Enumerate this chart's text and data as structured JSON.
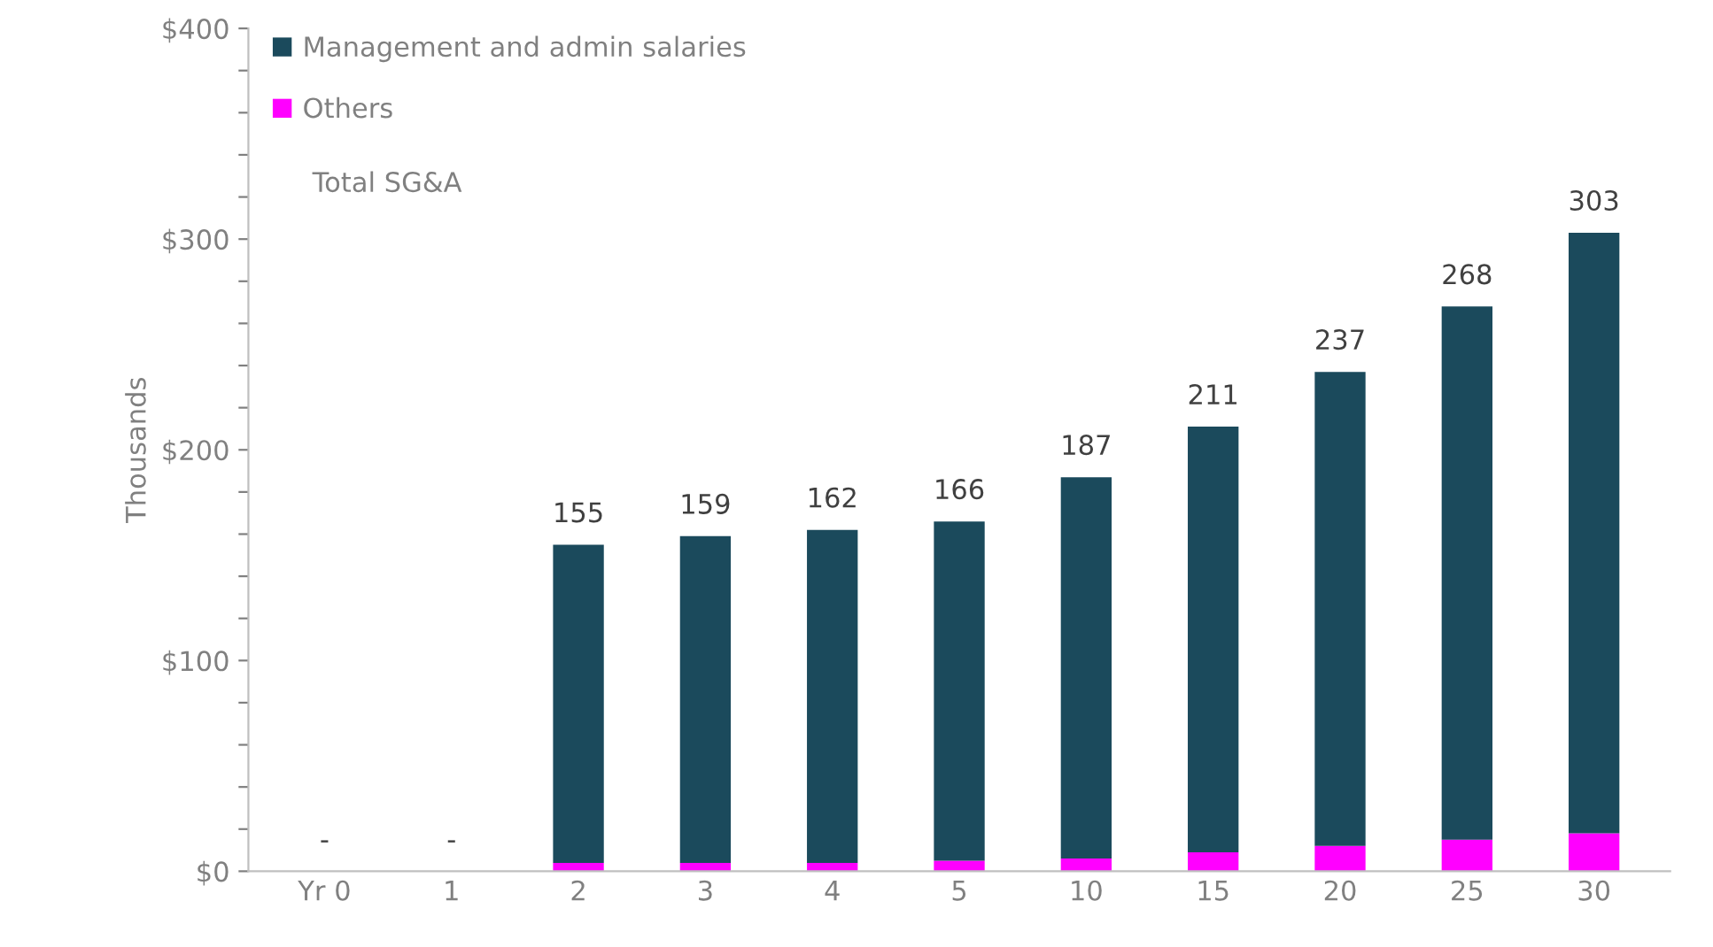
{
  "chart_data": {
    "type": "bar",
    "stacked": true,
    "ylabel": "Thousands",
    "categories": [
      "Yr 0",
      "1",
      "2",
      "3",
      "4",
      "5",
      "10",
      "15",
      "20",
      "25",
      "30"
    ],
    "series": [
      {
        "name": "Others",
        "color": "#ff00ff",
        "values": [
          0,
          0,
          4,
          4,
          4,
          5,
          6,
          9,
          12,
          15,
          18
        ]
      },
      {
        "name": "Management and admin salaries",
        "color": "#1b4a5c",
        "values": [
          0,
          0,
          151,
          155,
          158,
          161,
          181,
          202,
          225,
          253,
          285
        ]
      }
    ],
    "totals": [
      "-",
      "-",
      "155",
      "159",
      "162",
      "166",
      "187",
      "211",
      "237",
      "268",
      "303"
    ],
    "annotations": [
      "Total SG&A"
    ],
    "ylim": [
      0,
      400
    ],
    "yticks": [
      {
        "value": 0,
        "label": "$0"
      },
      {
        "value": 20,
        "label": null
      },
      {
        "value": 40,
        "label": null
      },
      {
        "value": 60,
        "label": null
      },
      {
        "value": 80,
        "label": null
      },
      {
        "value": 100,
        "label": "$100"
      },
      {
        "value": 120,
        "label": null
      },
      {
        "value": 140,
        "label": null
      },
      {
        "value": 160,
        "label": null
      },
      {
        "value": 180,
        "label": null
      },
      {
        "value": 200,
        "label": "$200"
      },
      {
        "value": 220,
        "label": null
      },
      {
        "value": 240,
        "label": null
      },
      {
        "value": 260,
        "label": null
      },
      {
        "value": 280,
        "label": null
      },
      {
        "value": 300,
        "label": "$300"
      },
      {
        "value": 320,
        "label": null
      },
      {
        "value": 340,
        "label": null
      },
      {
        "value": 360,
        "label": null
      },
      {
        "value": 380,
        "label": null
      },
      {
        "value": 400,
        "label": "$400"
      }
    ],
    "grid": false,
    "legend": "top left"
  }
}
